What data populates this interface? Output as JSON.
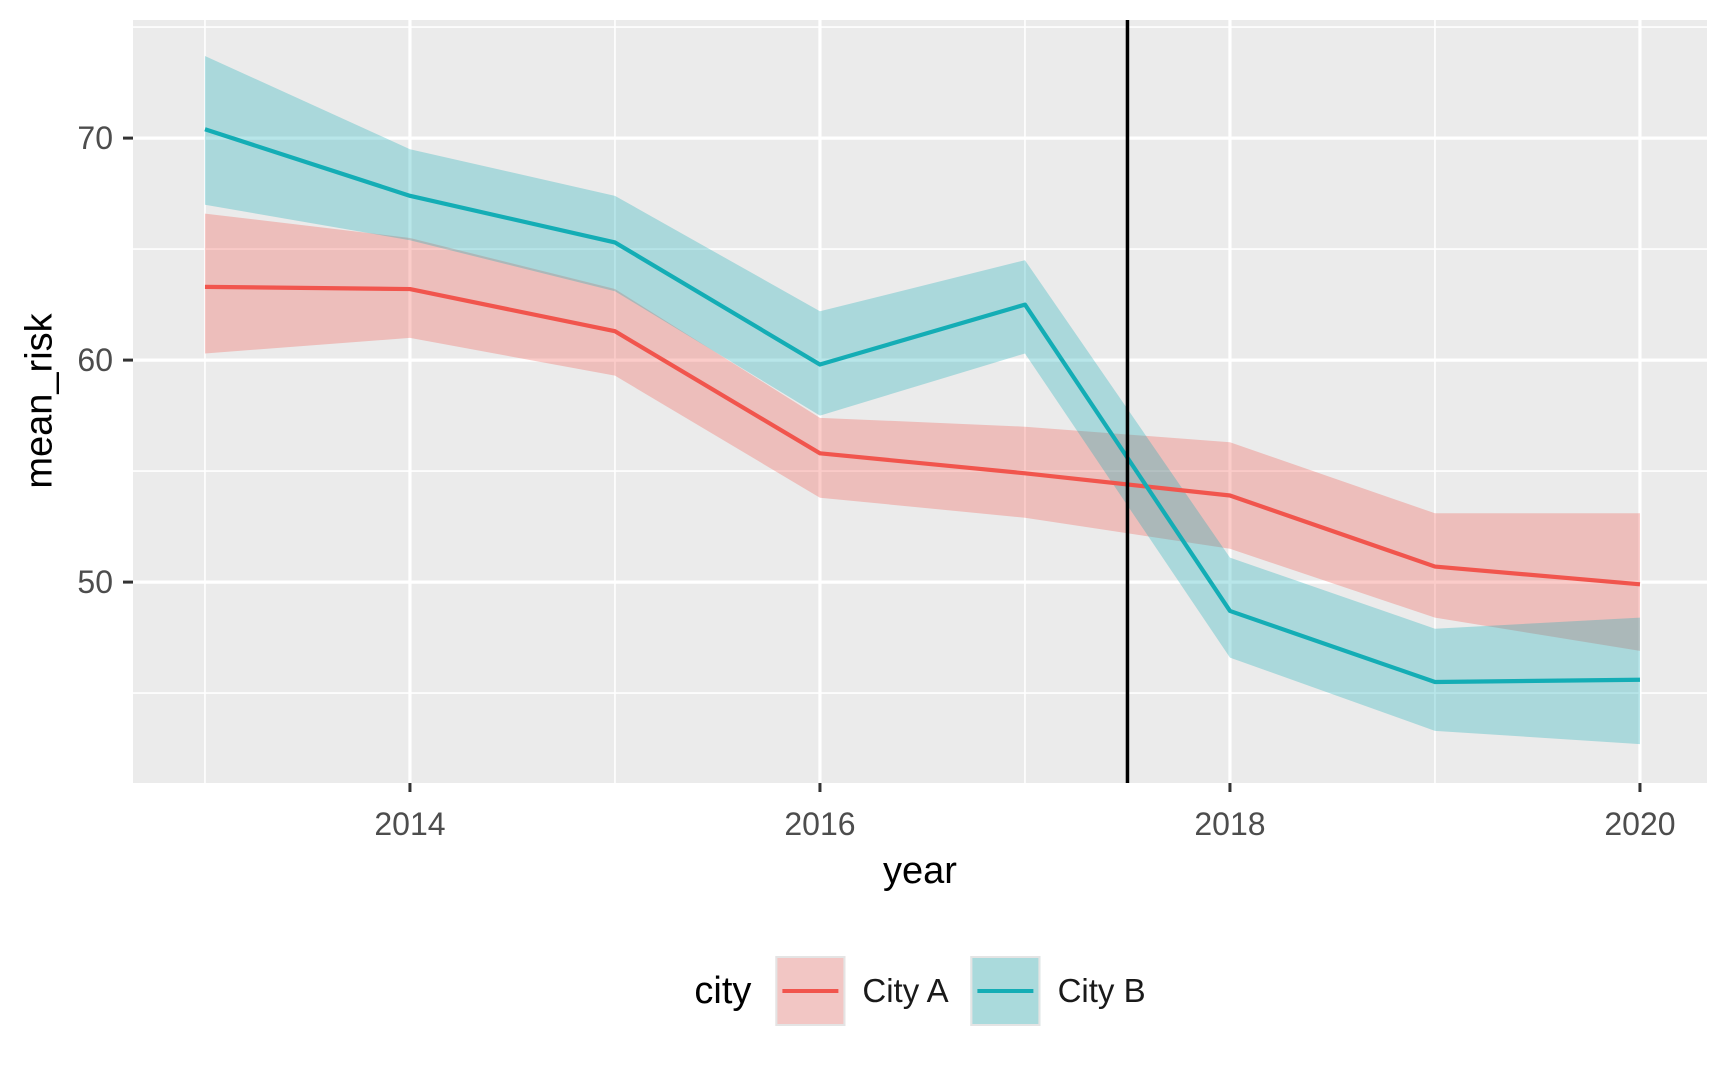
{
  "figure": {
    "background": "#FFFFFF"
  },
  "chart_data": {
    "type": "line",
    "title": "",
    "xlabel": "year",
    "ylabel": "mean_risk",
    "x": [
      2013,
      2014,
      2015,
      2016,
      2017,
      2018,
      2019,
      2020
    ],
    "series": [
      {
        "name": "City A",
        "color": "#F1554D",
        "values": [
          63.3,
          63.2,
          61.3,
          55.8,
          54.9,
          53.9,
          50.7,
          49.9
        ],
        "lower": [
          60.3,
          61.0,
          59.3,
          53.8,
          52.9,
          51.5,
          48.4,
          46.9
        ],
        "upper": [
          66.6,
          65.5,
          63.2,
          57.4,
          57.0,
          56.3,
          53.1,
          53.1
        ]
      },
      {
        "name": "City B",
        "color": "#14ADB5",
        "values": [
          70.4,
          67.4,
          65.3,
          59.8,
          62.5,
          48.7,
          45.5,
          45.6
        ],
        "lower": [
          67.0,
          65.4,
          63.1,
          57.5,
          60.3,
          46.6,
          43.3,
          42.7
        ],
        "upper": [
          73.7,
          69.5,
          67.4,
          62.2,
          64.5,
          51.1,
          47.9,
          48.4
        ]
      }
    ],
    "vline": {
      "x": 2017.5,
      "color": "#000000"
    },
    "x_ticks": [
      2014,
      2016,
      2018,
      2020
    ],
    "x_minor": [
      2013,
      2015,
      2017,
      2019
    ],
    "y_ticks": [
      50,
      60,
      70
    ],
    "y_minor": [
      45,
      55,
      65,
      75
    ],
    "xlim": [
      2012.649,
      2020.327
    ],
    "ylim": [
      40.95,
      75.32
    ],
    "grid": true,
    "legend_position": "bottom",
    "panel_bg": "#EBEBEB",
    "grid_color": "#FFFFFF",
    "ribbon_opacity": 0.3,
    "tick_mark_color": "#333333",
    "tick_label_color": "#4D4D4D",
    "axis_title_color": "#000000"
  },
  "legend": {
    "title": "city",
    "items": [
      {
        "label": "City A",
        "key_fill": "#F2C6C4",
        "line_color": "#F1554D"
      },
      {
        "label": "City B",
        "key_fill": "#AADADC",
        "line_color": "#14ADB5"
      }
    ]
  }
}
